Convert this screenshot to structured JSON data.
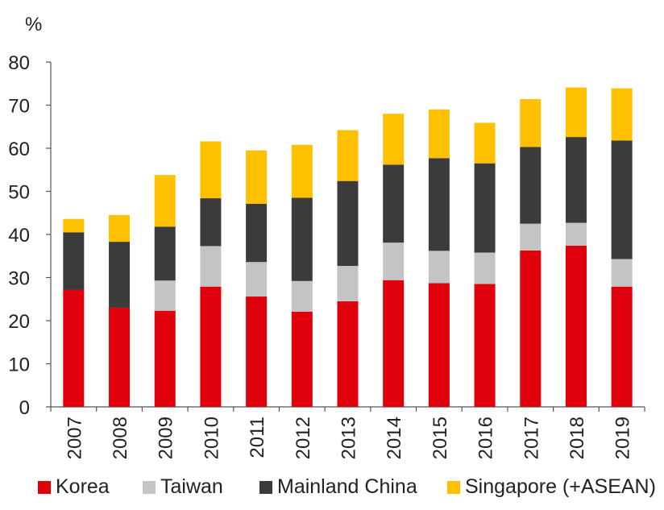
{
  "chart_data": {
    "type": "bar",
    "stacked": true,
    "unit": "%",
    "categories": [
      "2007",
      "2008",
      "2009",
      "2010",
      "2011",
      "2012",
      "2013",
      "2014",
      "2015",
      "2016",
      "2017",
      "2018",
      "2019"
    ],
    "series": [
      {
        "name": "Korea",
        "color": "#e0000b",
        "values": [
          27.2,
          23.0,
          22.3,
          27.9,
          25.6,
          22.1,
          24.5,
          29.4,
          28.7,
          28.5,
          36.3,
          37.4,
          27.9
        ]
      },
      {
        "name": "Taiwan",
        "color": "#c4c4c4",
        "values": [
          0,
          0,
          7.0,
          9.4,
          8.0,
          7.1,
          8.2,
          8.7,
          7.5,
          7.3,
          6.2,
          5.3,
          6.4
        ]
      },
      {
        "name": "Mainland China",
        "color": "#3b3b3b",
        "values": [
          13.3,
          15.3,
          12.5,
          11.1,
          13.5,
          19.3,
          19.7,
          18.1,
          21.5,
          20.7,
          17.8,
          19.9,
          27.5
        ]
      },
      {
        "name": "Singapore (+ASEAN)",
        "color": "#ffc000",
        "values": [
          3.1,
          6.2,
          12.0,
          13.2,
          12.4,
          12.3,
          11.8,
          11.8,
          11.3,
          9.4,
          11.1,
          11.5,
          12.1
        ]
      }
    ],
    "ylim": [
      0,
      80
    ],
    "yticks": [
      0,
      10,
      20,
      30,
      40,
      50,
      60,
      70,
      80
    ],
    "legend_position": "bottom",
    "grid": false
  }
}
